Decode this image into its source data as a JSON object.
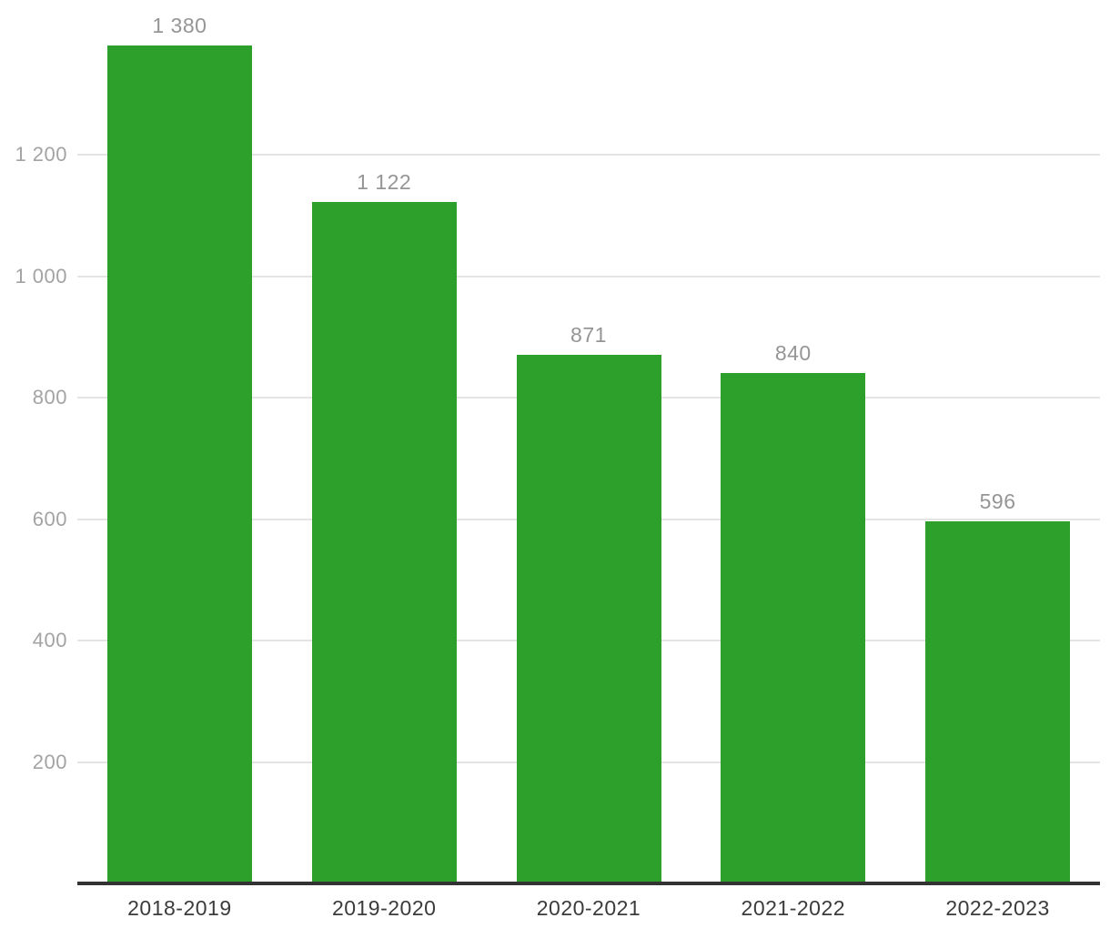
{
  "chart_data": {
    "type": "bar",
    "title": "",
    "xlabel": "",
    "ylabel": "",
    "categories": [
      "2018-2019",
      "2019-2020",
      "2020-2021",
      "2021-2022",
      "2022-2023"
    ],
    "values": [
      1380,
      1122,
      871,
      840,
      596
    ],
    "value_labels": [
      "1 380",
      "1 122",
      "871",
      "840",
      "596"
    ],
    "y_ticks": [
      200,
      400,
      600,
      800,
      1000,
      1200
    ],
    "y_tick_labels": [
      "200",
      "400",
      "600",
      "800",
      "1 000",
      "1 200"
    ],
    "ylim": [
      0,
      1455
    ],
    "grid": true,
    "legend": false,
    "colors": {
      "bar": "#2da02c",
      "value_label": "#959595",
      "y_tick_label": "#a3a3a3",
      "category_label": "#3b3b3b",
      "gridline": "#e4e4e4",
      "axis_line": "#333333",
      "background": "#ffffff"
    }
  }
}
